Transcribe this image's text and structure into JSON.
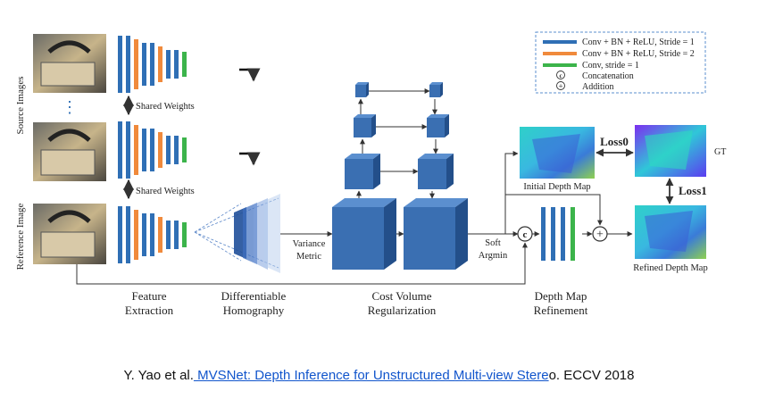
{
  "diagram": {
    "side_labels": {
      "source": "Source Images",
      "reference": "Reference Image"
    },
    "shared_weights": "Shared Weights",
    "ellipsis": "⋮",
    "stages": {
      "feature": [
        "Feature",
        "Extraction"
      ],
      "homography": [
        "Differentiable",
        "Homography"
      ],
      "regularization": [
        "Cost Volume",
        "Regularization"
      ],
      "refinement": [
        "Depth Map",
        "Refinement"
      ]
    },
    "variance_metric": [
      "Variance",
      "Metric"
    ],
    "soft_argmin": [
      "Soft",
      "Argmin"
    ],
    "concat_symbol": "c",
    "add_symbol": "+",
    "depth_maps": {
      "initial": "Initial Depth Map",
      "refined": "Refined Depth Map",
      "gt": "GT"
    },
    "losses": {
      "loss0": "Loss0",
      "loss1": "Loss1"
    },
    "legend": {
      "items": [
        {
          "label": "Conv + BN + ReLU, Stride = 1",
          "color": "#2f6fb5"
        },
        {
          "label": "Conv + BN + ReLU, Stride = 2",
          "color": "#f08a3c"
        },
        {
          "label": "Conv, stride = 1",
          "color": "#3cb44b"
        }
      ],
      "concat": {
        "symbol": "c",
        "label": "Concatenation"
      },
      "add": {
        "symbol": "+",
        "label": "Addition"
      }
    },
    "colors": {
      "blue": "#2f6fb5",
      "orange": "#f08a3c",
      "green": "#3cb44b",
      "cube": "#3a6fb2"
    }
  },
  "citation": {
    "prefix": "Y. Yao et al.",
    "link_text": " MVSNet: Depth Inference for Unstructured Multi-view Stere",
    "suffix": "o. ECCV 2018"
  }
}
